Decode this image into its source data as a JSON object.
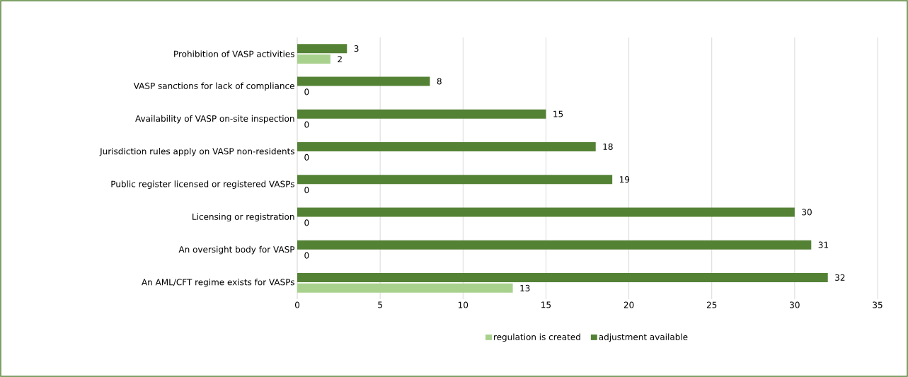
{
  "chart_data": {
    "type": "bar",
    "orientation": "horizontal",
    "categories": [
      "Prohibition of VASP activities",
      "VASP sanctions for lack of compliance",
      "Availability of VASP on-site inspection",
      "Jurisdiction rules apply on VASP non-residents",
      "Public register licensed or registered VASPs",
      "Licensing or registration",
      "An oversight body for VASP",
      "An AML/CFT regime exists for VASPs"
    ],
    "series": [
      {
        "name": "regulation is created",
        "color": "#a9d18e",
        "values": [
          2,
          0,
          0,
          0,
          0,
          0,
          0,
          13
        ]
      },
      {
        "name": "adjustment available",
        "color": "#548235",
        "values": [
          3,
          8,
          15,
          18,
          19,
          30,
          31,
          32
        ]
      }
    ],
    "xlim": [
      0,
      35
    ],
    "xticks": [
      0,
      5,
      10,
      15,
      20,
      25,
      30,
      35
    ],
    "grid": "x",
    "legend": "bottom",
    "data_labels": true
  }
}
